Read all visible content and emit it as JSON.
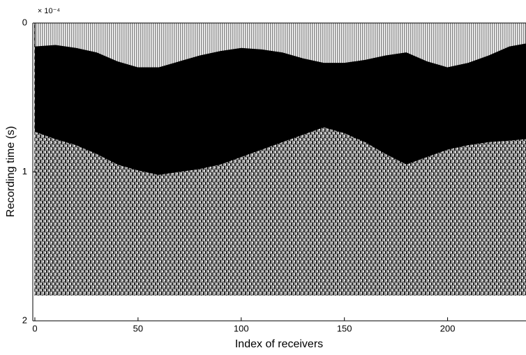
{
  "chart_data": {
    "type": "area",
    "y_label": "Recording time (s)",
    "x_label": "Index of receivers",
    "y_multiplier": "× 10⁻⁴",
    "y_inverted": true,
    "xlim": [
      -1,
      238
    ],
    "ylim": [
      0,
      2
    ],
    "xticks": [
      0,
      50,
      100,
      150,
      200
    ],
    "yticks": [
      0,
      1,
      2
    ],
    "trace_end": 1.83,
    "x": [
      0,
      10,
      20,
      30,
      40,
      50,
      60,
      70,
      80,
      90,
      100,
      110,
      120,
      130,
      140,
      150,
      160,
      170,
      180,
      190,
      200,
      210,
      220,
      230,
      238
    ],
    "series": [
      {
        "color": "#000000",
        "values": [
          0.16,
          0.15,
          0.17,
          0.2,
          0.26,
          0.3,
          0.3,
          0.26,
          0.22,
          0.19,
          0.17,
          0.18,
          0.2,
          0.24,
          0.27,
          0.27,
          0.25,
          0.22,
          0.2,
          0.26,
          0.3,
          0.27,
          0.22,
          0.16,
          0.14
        ]
      },
      {
        "color": "#000000",
        "values": [
          0.73,
          0.78,
          0.82,
          0.88,
          0.95,
          0.99,
          1.02,
          1.0,
          0.98,
          0.95,
          0.9,
          0.85,
          0.8,
          0.75,
          0.7,
          0.74,
          0.8,
          0.88,
          0.95,
          0.9,
          0.85,
          0.82,
          0.8,
          0.79,
          0.78
        ]
      }
    ]
  }
}
